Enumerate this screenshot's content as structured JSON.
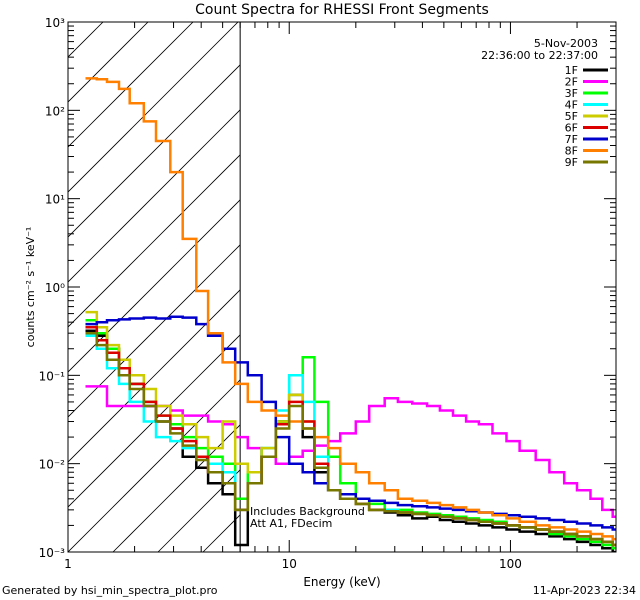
{
  "chart_data": {
    "type": "line",
    "title": "Count Spectra for RHESSI Front Segments",
    "xlabel": "Energy (keV)",
    "ylabel": "counts cm⁻² s⁻¹ keV⁻¹",
    "xscale": "log",
    "yscale": "log",
    "xlim": [
      1,
      300
    ],
    "ylim": [
      0.001,
      1000
    ],
    "x_ticks": [
      {
        "v": 1,
        "label": "1"
      },
      {
        "v": 10,
        "label": "10"
      },
      {
        "v": 100,
        "label": "100"
      }
    ],
    "y_ticks": [
      {
        "v": 0.001,
        "label": "10⁻³"
      },
      {
        "v": 0.01,
        "label": "10⁻²"
      },
      {
        "v": 0.1,
        "label": "10⁻¹"
      },
      {
        "v": 1,
        "label": "10⁰"
      },
      {
        "v": 10,
        "label": "10¹"
      },
      {
        "v": 100,
        "label": "10²"
      },
      {
        "v": 1000,
        "label": "10³"
      }
    ],
    "hatch_region": {
      "from": 1,
      "to": 6
    },
    "date": "5-Nov-2003",
    "time_range": "22:36:00 to 22:37:00",
    "annotation_line1": "Includes Background",
    "annotation_line2": "Att A1, FDecim",
    "series": [
      {
        "name": "1F",
        "color": "#000000",
        "x": [
          1.2,
          1.35,
          1.5,
          1.7,
          1.9,
          2.2,
          2.5,
          2.9,
          3.3,
          3.8,
          4.3,
          5.0,
          5.7,
          6.5,
          7.5,
          8.7,
          10,
          11.5,
          13,
          15,
          17,
          20,
          23,
          27,
          31,
          36,
          42,
          48,
          55,
          63,
          72,
          83,
          96,
          110,
          130,
          150,
          175,
          200,
          230,
          260,
          290
        ],
        "y": [
          0.32,
          0.28,
          0.2,
          0.12,
          0.08,
          0.045,
          0.03,
          0.025,
          0.012,
          0.009,
          0.006,
          0.0045,
          0.0012,
          0.006,
          0.012,
          0.03,
          0.06,
          0.02,
          0.008,
          0.005,
          0.004,
          0.0035,
          0.003,
          0.0028,
          0.0026,
          0.0024,
          0.0025,
          0.0023,
          0.0022,
          0.0021,
          0.002,
          0.0019,
          0.0018,
          0.0017,
          0.0016,
          0.0015,
          0.0014,
          0.0013,
          0.0012,
          0.0011,
          0.001
        ]
      },
      {
        "name": "2F",
        "color": "#ff00ff",
        "x": [
          1.2,
          1.35,
          1.5,
          1.7,
          1.9,
          2.2,
          2.5,
          2.9,
          3.3,
          3.8,
          4.3,
          5.0,
          5.7,
          6.5,
          7.5,
          8.7,
          10,
          11.5,
          13,
          15,
          17,
          20,
          23,
          27,
          31,
          36,
          42,
          48,
          55,
          63,
          72,
          83,
          96,
          110,
          130,
          150,
          175,
          200,
          230,
          260,
          290
        ],
        "y": [
          0.075,
          0.075,
          0.045,
          0.045,
          0.045,
          0.045,
          0.045,
          0.04,
          0.035,
          0.035,
          0.03,
          0.028,
          0.02,
          0.015,
          0.012,
          0.01,
          0.012,
          0.014,
          0.016,
          0.018,
          0.022,
          0.03,
          0.045,
          0.055,
          0.05,
          0.048,
          0.045,
          0.04,
          0.035,
          0.03,
          0.028,
          0.022,
          0.018,
          0.014,
          0.011,
          0.008,
          0.006,
          0.005,
          0.004,
          0.003,
          0.0025
        ]
      },
      {
        "name": "3F",
        "color": "#00ff00",
        "x": [
          1.2,
          1.35,
          1.5,
          1.7,
          1.9,
          2.2,
          2.5,
          2.9,
          3.3,
          3.8,
          4.3,
          5.0,
          5.7,
          6.5,
          7.5,
          8.7,
          10,
          11.5,
          13,
          15,
          17,
          20,
          23,
          27,
          31,
          36,
          42,
          48,
          55,
          63,
          72,
          83,
          96,
          110,
          130,
          150,
          175,
          200,
          230,
          260,
          290
        ],
        "y": [
          0.42,
          0.3,
          0.2,
          0.12,
          0.08,
          0.05,
          0.035,
          0.028,
          0.02,
          0.015,
          0.012,
          0.01,
          0.004,
          0.008,
          0.015,
          0.03,
          0.1,
          0.16,
          0.05,
          0.012,
          0.006,
          0.004,
          0.0035,
          0.003,
          0.003,
          0.0028,
          0.0027,
          0.0026,
          0.0025,
          0.0024,
          0.0023,
          0.0022,
          0.002,
          0.0019,
          0.0018,
          0.0016,
          0.0015,
          0.0014,
          0.0013,
          0.0012,
          0.0011
        ]
      },
      {
        "name": "4F",
        "color": "#00ffff",
        "x": [
          1.2,
          1.35,
          1.5,
          1.7,
          1.9,
          2.2,
          2.5,
          2.9,
          3.3,
          3.8,
          4.3,
          5.0,
          5.7,
          6.5,
          7.5,
          8.7,
          10,
          11.5,
          13,
          15,
          17,
          20,
          23,
          27,
          31,
          36,
          42,
          48,
          55,
          63,
          72,
          83,
          96,
          110,
          130,
          150,
          175,
          200,
          230,
          260,
          290
        ],
        "y": [
          0.28,
          0.2,
          0.12,
          0.08,
          0.05,
          0.03,
          0.02,
          0.018,
          0.015,
          0.012,
          0.01,
          0.008,
          0.003,
          0.006,
          0.015,
          0.04,
          0.1,
          0.05,
          0.012,
          0.005,
          0.004,
          0.0035,
          0.003,
          0.003,
          0.0028,
          0.0027,
          0.0026,
          0.0025,
          0.0024,
          0.0023,
          0.0022,
          0.0021,
          0.002,
          0.0019,
          0.0018,
          0.0017,
          0.0016,
          0.0015,
          0.0014,
          0.0013,
          0.0012
        ]
      },
      {
        "name": "5F",
        "color": "#cccc00",
        "x": [
          1.2,
          1.35,
          1.5,
          1.7,
          1.9,
          2.2,
          2.5,
          2.9,
          3.3,
          3.8,
          4.3,
          5.0,
          5.7,
          6.5,
          7.5,
          8.7,
          10,
          11.5,
          13,
          15,
          17,
          20,
          23,
          27,
          31,
          36,
          42,
          48,
          55,
          63,
          72,
          83,
          96,
          110,
          130,
          150,
          175,
          200,
          230,
          260,
          290
        ],
        "y": [
          0.52,
          0.35,
          0.22,
          0.15,
          0.1,
          0.07,
          0.045,
          0.035,
          0.028,
          0.02,
          0.015,
          0.03,
          0.01,
          0.008,
          0.015,
          0.03,
          0.06,
          0.03,
          0.01,
          0.005,
          0.004,
          0.0035,
          0.003,
          0.0029,
          0.0028,
          0.0027,
          0.0026,
          0.0025,
          0.0024,
          0.0023,
          0.0022,
          0.0021,
          0.002,
          0.0019,
          0.0018,
          0.0017,
          0.0016,
          0.0015,
          0.0014,
          0.0013,
          0.0012
        ]
      },
      {
        "name": "6F",
        "color": "#dd0000",
        "x": [
          1.2,
          1.35,
          1.5,
          1.7,
          1.9,
          2.2,
          2.5,
          2.9,
          3.3,
          3.8,
          4.3,
          5.0,
          5.7,
          6.5,
          7.5,
          8.7,
          10,
          11.5,
          13,
          15,
          17,
          20,
          23,
          27,
          31,
          36,
          42,
          48,
          55,
          63,
          72,
          83,
          96,
          110,
          130,
          150,
          175,
          200,
          230,
          260,
          290
        ],
        "y": [
          0.35,
          0.25,
          0.18,
          0.12,
          0.08,
          0.05,
          0.035,
          0.025,
          0.018,
          0.012,
          0.008,
          0.006,
          0.003,
          0.006,
          0.012,
          0.028,
          0.05,
          0.03,
          0.01,
          0.005,
          0.004,
          0.0035,
          0.003,
          0.0029,
          0.0028,
          0.0027,
          0.0026,
          0.0025,
          0.0024,
          0.0023,
          0.0022,
          0.0021,
          0.002,
          0.0019,
          0.0018,
          0.0017,
          0.0016,
          0.0015,
          0.0014,
          0.0013,
          0.0012
        ]
      },
      {
        "name": "7F",
        "color": "#0000cc",
        "x": [
          1.2,
          1.35,
          1.5,
          1.7,
          1.9,
          2.2,
          2.5,
          2.9,
          3.3,
          3.8,
          4.3,
          5.0,
          5.7,
          6.5,
          7.5,
          8.7,
          10,
          11.5,
          13,
          15,
          17,
          20,
          23,
          27,
          31,
          36,
          42,
          48,
          55,
          63,
          72,
          83,
          96,
          110,
          130,
          150,
          175,
          200,
          230,
          260,
          290
        ],
        "y": [
          0.38,
          0.4,
          0.42,
          0.43,
          0.44,
          0.45,
          0.44,
          0.46,
          0.45,
          0.38,
          0.28,
          0.2,
          0.14,
          0.1,
          0.05,
          0.02,
          0.01,
          0.008,
          0.006,
          0.005,
          0.0045,
          0.004,
          0.0038,
          0.0036,
          0.0034,
          0.0033,
          0.0032,
          0.0031,
          0.003,
          0.0029,
          0.0028,
          0.0027,
          0.0026,
          0.0025,
          0.0024,
          0.0023,
          0.0022,
          0.0021,
          0.002,
          0.0019,
          0.0018
        ]
      },
      {
        "name": "8F",
        "color": "#ff8000",
        "x": [
          1.2,
          1.35,
          1.5,
          1.7,
          1.9,
          2.2,
          2.5,
          2.9,
          3.3,
          3.8,
          4.3,
          5.0,
          5.7,
          6.5,
          7.5,
          8.7,
          10,
          11.5,
          13,
          15,
          17,
          20,
          23,
          27,
          31,
          36,
          42,
          48,
          55,
          63,
          72,
          83,
          96,
          110,
          130,
          150,
          175,
          200,
          230,
          260,
          290
        ],
        "y": [
          230,
          225,
          210,
          175,
          120,
          75,
          45,
          20,
          3.5,
          0.9,
          0.3,
          0.14,
          0.08,
          0.05,
          0.04,
          0.035,
          0.03,
          0.025,
          0.02,
          0.015,
          0.01,
          0.008,
          0.006,
          0.005,
          0.004,
          0.0038,
          0.0036,
          0.0034,
          0.0032,
          0.003,
          0.0028,
          0.0026,
          0.0024,
          0.0022,
          0.002,
          0.0019,
          0.0018,
          0.0017,
          0.0016,
          0.0015,
          0.0014
        ]
      },
      {
        "name": "9F",
        "color": "#777700",
        "x": [
          1.2,
          1.35,
          1.5,
          1.7,
          1.9,
          2.2,
          2.5,
          2.9,
          3.3,
          3.8,
          4.3,
          5.0,
          5.7,
          6.5,
          7.5,
          8.7,
          10,
          11.5,
          13,
          15,
          17,
          20,
          23,
          27,
          31,
          36,
          42,
          48,
          55,
          63,
          72,
          83,
          96,
          110,
          130,
          150,
          175,
          200,
          230,
          260,
          290
        ],
        "y": [
          0.3,
          0.22,
          0.15,
          0.1,
          0.07,
          0.045,
          0.03,
          0.022,
          0.016,
          0.011,
          0.008,
          0.006,
          0.003,
          0.006,
          0.012,
          0.025,
          0.045,
          0.025,
          0.009,
          0.005,
          0.004,
          0.0035,
          0.003,
          0.0029,
          0.0028,
          0.0027,
          0.0026,
          0.0025,
          0.0024,
          0.0023,
          0.0022,
          0.0021,
          0.002,
          0.0019,
          0.0018,
          0.0017,
          0.0016,
          0.0015,
          0.0014,
          0.0013,
          0.0012
        ]
      }
    ]
  },
  "footer": {
    "generated_by": "Generated by hsi_min_spectra_plot.pro",
    "timestamp": "11-Apr-2023 22:34"
  }
}
